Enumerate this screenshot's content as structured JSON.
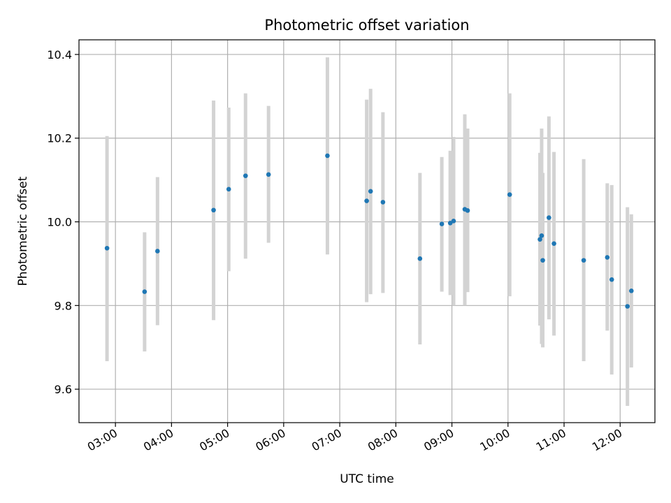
{
  "chart_data": {
    "type": "scatter",
    "title": "Photometric offset variation",
    "xlabel": "UTC time",
    "ylabel": "Photometric offset",
    "xlim_hours": [
      2.35,
      12.62
    ],
    "ylim": [
      9.52,
      10.435
    ],
    "grid": true,
    "colors": {
      "point": "#1f77b4",
      "errorbar": "#d3d3d3",
      "grid": "#b0b0b0",
      "axes": "#000000"
    },
    "x_ticks": [
      {
        "hour": 3,
        "label": "03:00"
      },
      {
        "hour": 4,
        "label": "04:00"
      },
      {
        "hour": 5,
        "label": "05:00"
      },
      {
        "hour": 6,
        "label": "06:00"
      },
      {
        "hour": 7,
        "label": "07:00"
      },
      {
        "hour": 8,
        "label": "08:00"
      },
      {
        "hour": 9,
        "label": "09:00"
      },
      {
        "hour": 10,
        "label": "10:00"
      },
      {
        "hour": 11,
        "label": "11:00"
      },
      {
        "hour": 12,
        "label": "12:00"
      }
    ],
    "y_ticks": [
      {
        "value": 9.6,
        "label": "9.6"
      },
      {
        "value": 9.8,
        "label": "9.8"
      },
      {
        "value": 10.0,
        "label": "10.0"
      },
      {
        "value": 10.2,
        "label": "10.2"
      },
      {
        "value": 10.4,
        "label": "10.4"
      }
    ],
    "points": [
      {
        "t": 2.85,
        "y": 9.937,
        "lo": 9.667,
        "hi": 10.205
      },
      {
        "t": 3.52,
        "y": 9.833,
        "lo": 9.69,
        "hi": 9.975
      },
      {
        "t": 3.75,
        "y": 9.93,
        "lo": 9.753,
        "hi": 10.107
      },
      {
        "t": 4.75,
        "y": 10.028,
        "lo": 9.765,
        "hi": 10.29
      },
      {
        "t": 5.02,
        "y": 10.078,
        "lo": 9.882,
        "hi": 10.273
      },
      {
        "t": 5.32,
        "y": 10.11,
        "lo": 9.912,
        "hi": 10.307
      },
      {
        "t": 5.73,
        "y": 10.113,
        "lo": 9.95,
        "hi": 10.277
      },
      {
        "t": 6.78,
        "y": 10.158,
        "lo": 9.922,
        "hi": 10.393
      },
      {
        "t": 7.48,
        "y": 10.05,
        "lo": 9.808,
        "hi": 10.292
      },
      {
        "t": 7.55,
        "y": 10.073,
        "lo": 9.827,
        "hi": 10.318
      },
      {
        "t": 7.77,
        "y": 10.047,
        "lo": 9.83,
        "hi": 10.262
      },
      {
        "t": 8.43,
        "y": 9.912,
        "lo": 9.707,
        "hi": 10.117
      },
      {
        "t": 8.82,
        "y": 9.995,
        "lo": 9.833,
        "hi": 10.155
      },
      {
        "t": 8.97,
        "y": 9.997,
        "lo": 9.825,
        "hi": 10.17
      },
      {
        "t": 9.03,
        "y": 10.002,
        "lo": 9.8,
        "hi": 10.203
      },
      {
        "t": 9.23,
        "y": 10.03,
        "lo": 9.8,
        "hi": 10.257
      },
      {
        "t": 9.28,
        "y": 10.027,
        "lo": 9.832,
        "hi": 10.223
      },
      {
        "t": 10.03,
        "y": 10.065,
        "lo": 9.822,
        "hi": 10.307
      },
      {
        "t": 10.57,
        "y": 9.958,
        "lo": 9.752,
        "hi": 10.165
      },
      {
        "t": 10.6,
        "y": 9.967,
        "lo": 9.708,
        "hi": 10.223
      },
      {
        "t": 10.62,
        "y": 9.908,
        "lo": 9.7,
        "hi": 10.117
      },
      {
        "t": 10.73,
        "y": 10.01,
        "lo": 9.767,
        "hi": 10.252
      },
      {
        "t": 10.82,
        "y": 9.948,
        "lo": 9.728,
        "hi": 10.167
      },
      {
        "t": 11.35,
        "y": 9.908,
        "lo": 9.667,
        "hi": 10.15
      },
      {
        "t": 11.77,
        "y": 9.915,
        "lo": 9.74,
        "hi": 10.092
      },
      {
        "t": 11.85,
        "y": 9.862,
        "lo": 9.635,
        "hi": 10.088
      },
      {
        "t": 12.13,
        "y": 9.798,
        "lo": 9.56,
        "hi": 10.035
      },
      {
        "t": 12.2,
        "y": 9.835,
        "lo": 9.652,
        "hi": 10.018
      }
    ]
  }
}
